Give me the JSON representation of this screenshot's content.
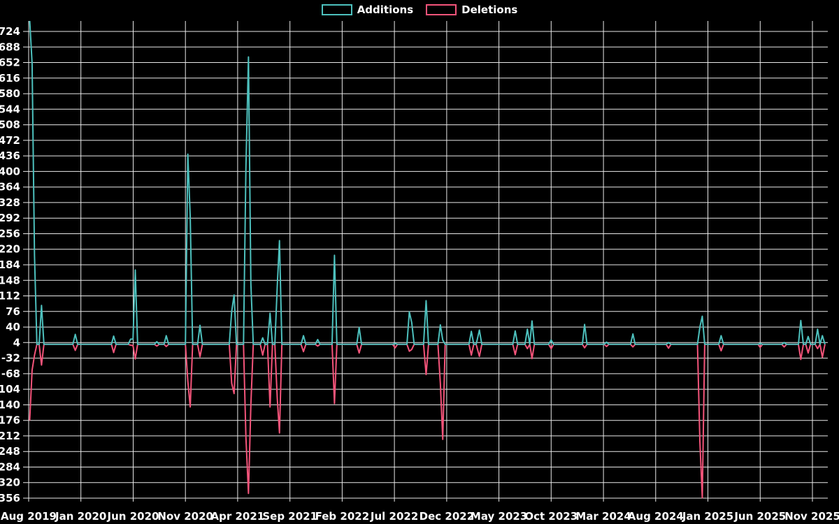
{
  "chart_data": {
    "type": "line",
    "title": "",
    "background_color": "#000000",
    "gridline_color": "#e9e9e9",
    "text_color": "#ffffff",
    "legend_position": "top-center",
    "series": [
      {
        "name": "Additions",
        "color": "#4dc0bd"
      },
      {
        "name": "Deletions",
        "color": "#f4547a"
      }
    ],
    "y_axis": {
      "max": 724,
      "min": -356,
      "step": 36,
      "baseline": 0,
      "tick_labels": [
        "724",
        "688",
        "652",
        "616",
        "580",
        "544",
        "508",
        "472",
        "436",
        "400",
        "364",
        "328",
        "292",
        "256",
        "220",
        "184",
        "148",
        "112",
        "76",
        "40",
        "4",
        "-32",
        "-68",
        "-104",
        "-140",
        "-176",
        "-212",
        "-248",
        "-284",
        "-320",
        "-356"
      ]
    },
    "x_axis": {
      "tick_labels": [
        "Aug 2019",
        "Jan 2020",
        "Jun 2020",
        "Nov 2020",
        "Apr 2021",
        "Sep 2021",
        "Feb 2022",
        "Jul 2022",
        "Dec 2022",
        "May 2023",
        "Oct 2023",
        "Mar 2024",
        "Aug 2024",
        "Jan 2025",
        "Jun 2025",
        "Nov 2025"
      ],
      "months_per_tick": 5,
      "range_start": "2019-08-04",
      "range_end": "2025-12-07"
    },
    "sampling": "weekly",
    "events": [
      [
        "2019-08-04",
        750,
        -176
      ],
      [
        "2019-08-11",
        650,
        -60
      ],
      [
        "2019-08-18",
        205,
        -25
      ],
      [
        "2019-09-08",
        90,
        -48
      ],
      [
        "2019-12-15",
        23,
        -14
      ],
      [
        "2020-04-05",
        19,
        -19
      ],
      [
        "2020-05-24",
        12,
        -2
      ],
      [
        "2020-05-31",
        12,
        -3
      ],
      [
        "2020-06-07",
        172,
        -34
      ],
      [
        "2020-08-09",
        6,
        -4
      ],
      [
        "2020-09-06",
        20,
        -5
      ],
      [
        "2020-11-08",
        440,
        -85
      ],
      [
        "2020-11-15",
        295,
        -145
      ],
      [
        "2020-12-13",
        44,
        -29
      ],
      [
        "2021-03-14",
        76,
        -90
      ],
      [
        "2021-03-21",
        114,
        -114
      ],
      [
        "2021-04-25",
        408,
        -215
      ],
      [
        "2021-05-02",
        665,
        -345
      ],
      [
        "2021-05-09",
        140,
        -140
      ],
      [
        "2021-06-13",
        15,
        -25
      ],
      [
        "2021-07-04",
        72,
        -145
      ],
      [
        "2021-07-25",
        135,
        -125
      ],
      [
        "2021-08-01",
        240,
        -205
      ],
      [
        "2021-10-10",
        20,
        -17
      ],
      [
        "2021-11-21",
        11,
        -4
      ],
      [
        "2022-01-09",
        206,
        -137
      ],
      [
        "2022-03-20",
        39,
        -20
      ],
      [
        "2022-07-03",
        2,
        -8
      ],
      [
        "2022-08-14",
        75,
        -16
      ],
      [
        "2022-08-21",
        50,
        -12
      ],
      [
        "2022-10-02",
        101,
        -70
      ],
      [
        "2022-11-13",
        45,
        -90
      ],
      [
        "2022-11-20",
        10,
        -220
      ],
      [
        "2023-02-12",
        30,
        -25
      ],
      [
        "2023-03-05",
        33,
        -28
      ],
      [
        "2023-06-18",
        31,
        -24
      ],
      [
        "2023-07-23",
        35,
        -10
      ],
      [
        "2023-08-06",
        54,
        -33
      ],
      [
        "2023-10-01",
        10,
        -10
      ],
      [
        "2024-01-07",
        46,
        -8
      ],
      [
        "2024-03-10",
        5,
        -5
      ],
      [
        "2024-05-26",
        24,
        -6
      ],
      [
        "2024-09-08",
        4,
        -9
      ],
      [
        "2024-12-08",
        40,
        -225
      ],
      [
        "2024-12-15",
        65,
        -355
      ],
      [
        "2025-02-09",
        20,
        -15
      ],
      [
        "2025-06-01",
        2,
        -7
      ],
      [
        "2025-08-10",
        4,
        -6
      ],
      [
        "2025-09-28",
        55,
        -35
      ],
      [
        "2025-10-19",
        18,
        -20
      ],
      [
        "2025-11-16",
        35,
        -10
      ],
      [
        "2025-11-30",
        20,
        -30
      ]
    ]
  }
}
